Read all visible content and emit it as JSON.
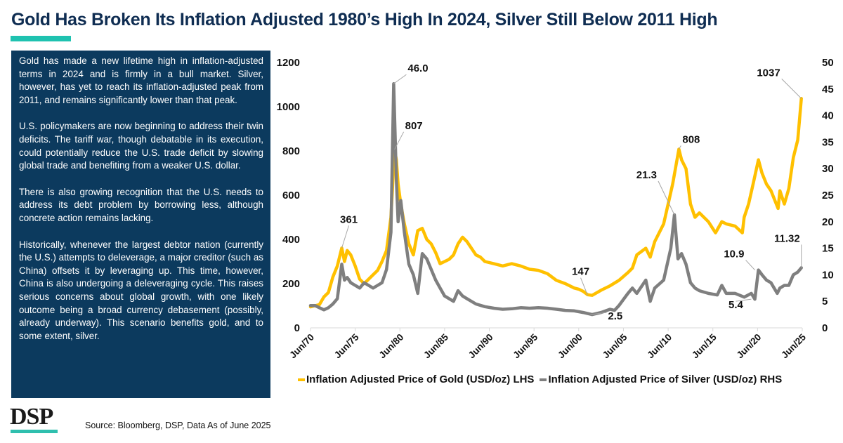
{
  "title": "Gold Has Broken Its Inflation Adjusted 1980’s High In 2024, Silver Still Below 2011 High",
  "commentary": [
    "Gold has made a new lifetime high in inflation-adjusted terms in 2024 and is firmly in a bull market. Silver, however, has yet to reach its inflation-adjusted peak from 2011, and remains significantly lower than that peak.",
    "U.S. policymakers are now beginning to address their twin deficits. The tariff war, though debatable in its execution, could potentially reduce the U.S. trade deficit by slowing global trade and benefiting from a weaker U.S. dollar.",
    "There is also growing recognition that the U.S. needs to address its debt problem by borrowing less, although concrete action remains lacking.",
    "Historically, whenever the largest debtor nation (currently the U.S.) attempts to deleverage, a major creditor (such as China) offsets it by leveraging up. This time, however, China is also undergoing a deleveraging cycle. This raises serious concerns about global growth, with one likely outcome being a broad currency debasement (possibly, already underway). This scenario benefits gold, and to some extent, silver."
  ],
  "logo": "DSP",
  "source": "Source: Bloomberg, DSP, Data As of June 2025",
  "colors": {
    "gold": "#ffc000",
    "silver": "#7f7f7f",
    "navy": "#0c3a5e",
    "teal": "#1fc2b0"
  },
  "chart_data": {
    "type": "line",
    "title": "",
    "xlabel": "",
    "ylabel_left": "Inflation Adjusted Price of Gold (USD/oz)",
    "ylabel_right": "Inflation Adjusted Price of Silver (USD/oz)",
    "x_ticks": [
      "Jun/70",
      "Jun/75",
      "Jun/80",
      "Jun/85",
      "Jun/90",
      "Jun/95",
      "Jun/00",
      "Jun/05",
      "Jun/10",
      "Jun/15",
      "Jun/20",
      "Jun/25"
    ],
    "x_range": [
      1970.5,
      2025.5
    ],
    "y_left": {
      "range": [
        0,
        1200
      ],
      "ticks": [
        0,
        200,
        400,
        600,
        800,
        1000,
        1200
      ]
    },
    "y_right": {
      "range": [
        0,
        50
      ],
      "ticks": [
        0,
        5,
        10,
        15,
        20,
        25,
        30,
        35,
        40,
        45,
        50
      ]
    },
    "grid": false,
    "legend_position": "bottom",
    "series": [
      {
        "name": "Inflation Adjusted Price of Gold (USD/oz) LHS",
        "axis": "left",
        "color": "#ffc000",
        "x": [
          1970.5,
          1971,
          1971.5,
          1972,
          1972.5,
          1973,
          1973.5,
          1974,
          1974.3,
          1974.6,
          1975,
          1975.5,
          1976,
          1976.5,
          1977,
          1977.5,
          1978,
          1978.5,
          1979,
          1979.5,
          1979.9,
          1980.1,
          1980.3,
          1980.6,
          1981,
          1981.5,
          1982,
          1982.5,
          1983,
          1983.5,
          1984,
          1984.5,
          1985,
          1985.5,
          1986,
          1986.5,
          1987,
          1987.5,
          1988,
          1988.5,
          1989,
          1989.5,
          1990,
          1991,
          1992,
          1993,
          1994,
          1995,
          1996,
          1997,
          1998,
          1999,
          2000,
          2000.5,
          2001,
          2001.5,
          2002,
          2003,
          2004,
          2005,
          2006,
          2006.5,
          2007,
          2008,
          2008.5,
          2009,
          2010,
          2011,
          2011.7,
          2012,
          2012.5,
          2013,
          2013.5,
          2014,
          2015,
          2015.8,
          2016.5,
          2017,
          2018,
          2018.8,
          2019,
          2019.5,
          2020,
          2020.6,
          2021,
          2021.5,
          2022,
          2022.8,
          2023,
          2023.5,
          2024,
          2024.5,
          2025,
          2025.4
        ],
        "values": [
          95,
          100,
          105,
          140,
          160,
          230,
          280,
          361,
          300,
          350,
          330,
          280,
          220,
          200,
          220,
          240,
          260,
          300,
          350,
          500,
          807,
          760,
          650,
          560,
          470,
          380,
          330,
          440,
          450,
          400,
          380,
          340,
          290,
          300,
          310,
          330,
          380,
          410,
          390,
          360,
          330,
          320,
          300,
          290,
          280,
          290,
          280,
          265,
          260,
          245,
          215,
          200,
          180,
          175,
          165,
          150,
          147,
          170,
          190,
          215,
          250,
          270,
          330,
          360,
          320,
          390,
          470,
          650,
          808,
          760,
          720,
          560,
          500,
          520,
          480,
          430,
          480,
          470,
          460,
          430,
          500,
          560,
          650,
          760,
          700,
          650,
          620,
          540,
          620,
          560,
          630,
          770,
          850,
          1037
        ]
      },
      {
        "name": "Inflation Adjusted Price of Silver (USD/oz) RHS",
        "axis": "right",
        "color": "#7f7f7f",
        "x": [
          1970.5,
          1971,
          1971.5,
          1972,
          1972.5,
          1973,
          1973.5,
          1974,
          1974.3,
          1974.6,
          1975,
          1975.5,
          1976,
          1976.5,
          1977,
          1977.5,
          1978,
          1978.5,
          1979,
          1979.5,
          1979.8,
          1980.1,
          1980.3,
          1980.6,
          1981,
          1981.5,
          1982,
          1982.5,
          1983,
          1983.5,
          1984,
          1984.5,
          1985,
          1985.5,
          1986,
          1986.5,
          1987,
          1987.5,
          1988,
          1989,
          1990,
          1991,
          1992,
          1993,
          1994,
          1995,
          1996,
          1997,
          1998,
          1999,
          2000,
          2001,
          2001.5,
          2002,
          2003,
          2004,
          2004.5,
          2005,
          2006,
          2006.5,
          2007,
          2008,
          2008.5,
          2009,
          2010,
          2010.8,
          2011.2,
          2011.6,
          2012,
          2012.5,
          2013,
          2013.5,
          2014,
          2015,
          2016,
          2016.5,
          2017,
          2018,
          2019,
          2019.8,
          2020.2,
          2020.6,
          2021,
          2021.5,
          2022,
          2022.7,
          2023,
          2023.5,
          2024,
          2024.5,
          2025,
          2025.4
        ],
        "values": [
          4.2,
          4.2,
          3.8,
          3.4,
          3.8,
          4.5,
          5.5,
          12,
          9,
          9.5,
          8.5,
          8,
          7.5,
          8.5,
          8,
          7.5,
          8,
          8.5,
          11,
          18,
          46,
          28,
          20,
          24,
          18,
          12,
          10,
          6.5,
          14,
          13,
          11,
          9,
          7.5,
          6,
          5.5,
          5,
          7,
          6,
          5.5,
          4.5,
          4,
          3.7,
          3.5,
          3.6,
          3.8,
          3.7,
          3.8,
          3.7,
          3.5,
          3.3,
          3.2,
          2.9,
          2.7,
          2.5,
          2.9,
          3.5,
          3.3,
          4.2,
          6.5,
          7.5,
          6.5,
          9,
          5,
          7.5,
          9,
          15,
          21.3,
          13,
          14,
          12,
          8.5,
          7.5,
          7,
          6.5,
          6.2,
          8,
          6.5,
          6.5,
          5.8,
          6.5,
          5.4,
          10.9,
          10,
          9,
          8.5,
          6.5,
          7.5,
          8,
          8,
          10,
          10.5,
          11.32
        ]
      }
    ],
    "annotations": [
      {
        "series": "gold",
        "x": 1974.0,
        "y": 361,
        "text": "361"
      },
      {
        "series": "silver",
        "x": 1979.8,
        "y": 46.0,
        "text": "46.0"
      },
      {
        "series": "gold",
        "x": 1979.9,
        "y": 807,
        "text": "807"
      },
      {
        "series": "gold",
        "x": 2001.5,
        "y": 147,
        "text": "147"
      },
      {
        "series": "silver",
        "x": 2001.8,
        "y": 2.5,
        "text": "2.5"
      },
      {
        "series": "silver",
        "x": 2011.2,
        "y": 21.3,
        "text": "21.3"
      },
      {
        "series": "gold",
        "x": 2011.7,
        "y": 808,
        "text": "808"
      },
      {
        "series": "silver",
        "x": 2019.8,
        "y": 5.4,
        "text": "5.4"
      },
      {
        "series": "silver",
        "x": 2020.2,
        "y": 10.9,
        "text": "10.9"
      },
      {
        "series": "gold",
        "x": 2025.4,
        "y": 1037,
        "text": "1037"
      },
      {
        "series": "silver",
        "x": 2025.4,
        "y": 11.32,
        "text": "11.32"
      }
    ]
  },
  "legend": [
    {
      "label": "Inflation Adjusted Price of Gold (USD/oz) LHS",
      "color": "#ffc000"
    },
    {
      "label": "Inflation Adjusted Price of Silver (USD/oz) RHS",
      "color": "#7f7f7f"
    }
  ]
}
